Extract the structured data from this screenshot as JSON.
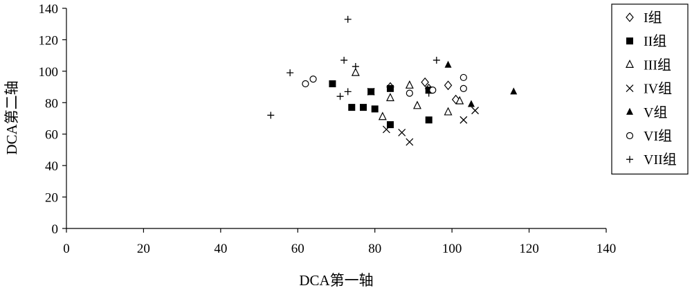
{
  "chart_data": {
    "type": "scatter",
    "xlabel": "DCA第一轴",
    "ylabel": "DCA第二轴",
    "xlim": [
      0,
      140
    ],
    "ylim": [
      0,
      140
    ],
    "xticks": [
      0,
      20,
      40,
      60,
      80,
      100,
      120,
      140
    ],
    "yticks": [
      0,
      20,
      40,
      60,
      80,
      100,
      120,
      140
    ],
    "grid": false,
    "legend_position": "top-right",
    "series": [
      {
        "name": "I组",
        "marker": "diamond-open",
        "color": "#000000",
        "points": [
          [
            93,
            93
          ],
          [
            99,
            91
          ],
          [
            101,
            82
          ],
          [
            94,
            89
          ],
          [
            84,
            90
          ]
        ]
      },
      {
        "name": "II组",
        "marker": "square-filled",
        "color": "#000000",
        "points": [
          [
            69,
            92
          ],
          [
            74,
            77
          ],
          [
            77,
            77
          ],
          [
            79,
            87
          ],
          [
            80,
            76
          ],
          [
            84,
            66
          ],
          [
            84,
            89
          ],
          [
            94,
            69
          ],
          [
            94,
            88
          ]
        ]
      },
      {
        "name": "III组",
        "marker": "triangle-open",
        "color": "#000000",
        "points": [
          [
            75,
            99
          ],
          [
            82,
            71
          ],
          [
            84,
            83
          ],
          [
            89,
            91
          ],
          [
            91,
            78
          ],
          [
            99,
            74
          ],
          [
            102,
            81
          ]
        ]
      },
      {
        "name": "IV组",
        "marker": "x",
        "color": "#000000",
        "points": [
          [
            83,
            63
          ],
          [
            87,
            61
          ],
          [
            89,
            55
          ],
          [
            103,
            69
          ],
          [
            106,
            75
          ],
          [
            79,
            87
          ]
        ]
      },
      {
        "name": "V组",
        "marker": "triangle-filled",
        "color": "#000000",
        "points": [
          [
            99,
            104
          ],
          [
            105,
            79
          ],
          [
            116,
            87
          ]
        ]
      },
      {
        "name": "VI组",
        "marker": "circle-open",
        "color": "#000000",
        "points": [
          [
            62,
            92
          ],
          [
            64,
            95
          ],
          [
            89,
            86
          ],
          [
            103,
            96
          ],
          [
            103,
            89
          ],
          [
            95,
            88
          ]
        ]
      },
      {
        "name": "VII组",
        "marker": "plus",
        "color": "#000000",
        "points": [
          [
            53,
            72
          ],
          [
            58,
            99
          ],
          [
            71,
            84
          ],
          [
            72,
            107
          ],
          [
            73,
            87
          ],
          [
            73,
            133
          ],
          [
            75,
            103
          ],
          [
            94,
            86
          ],
          [
            96,
            107
          ]
        ]
      }
    ]
  }
}
